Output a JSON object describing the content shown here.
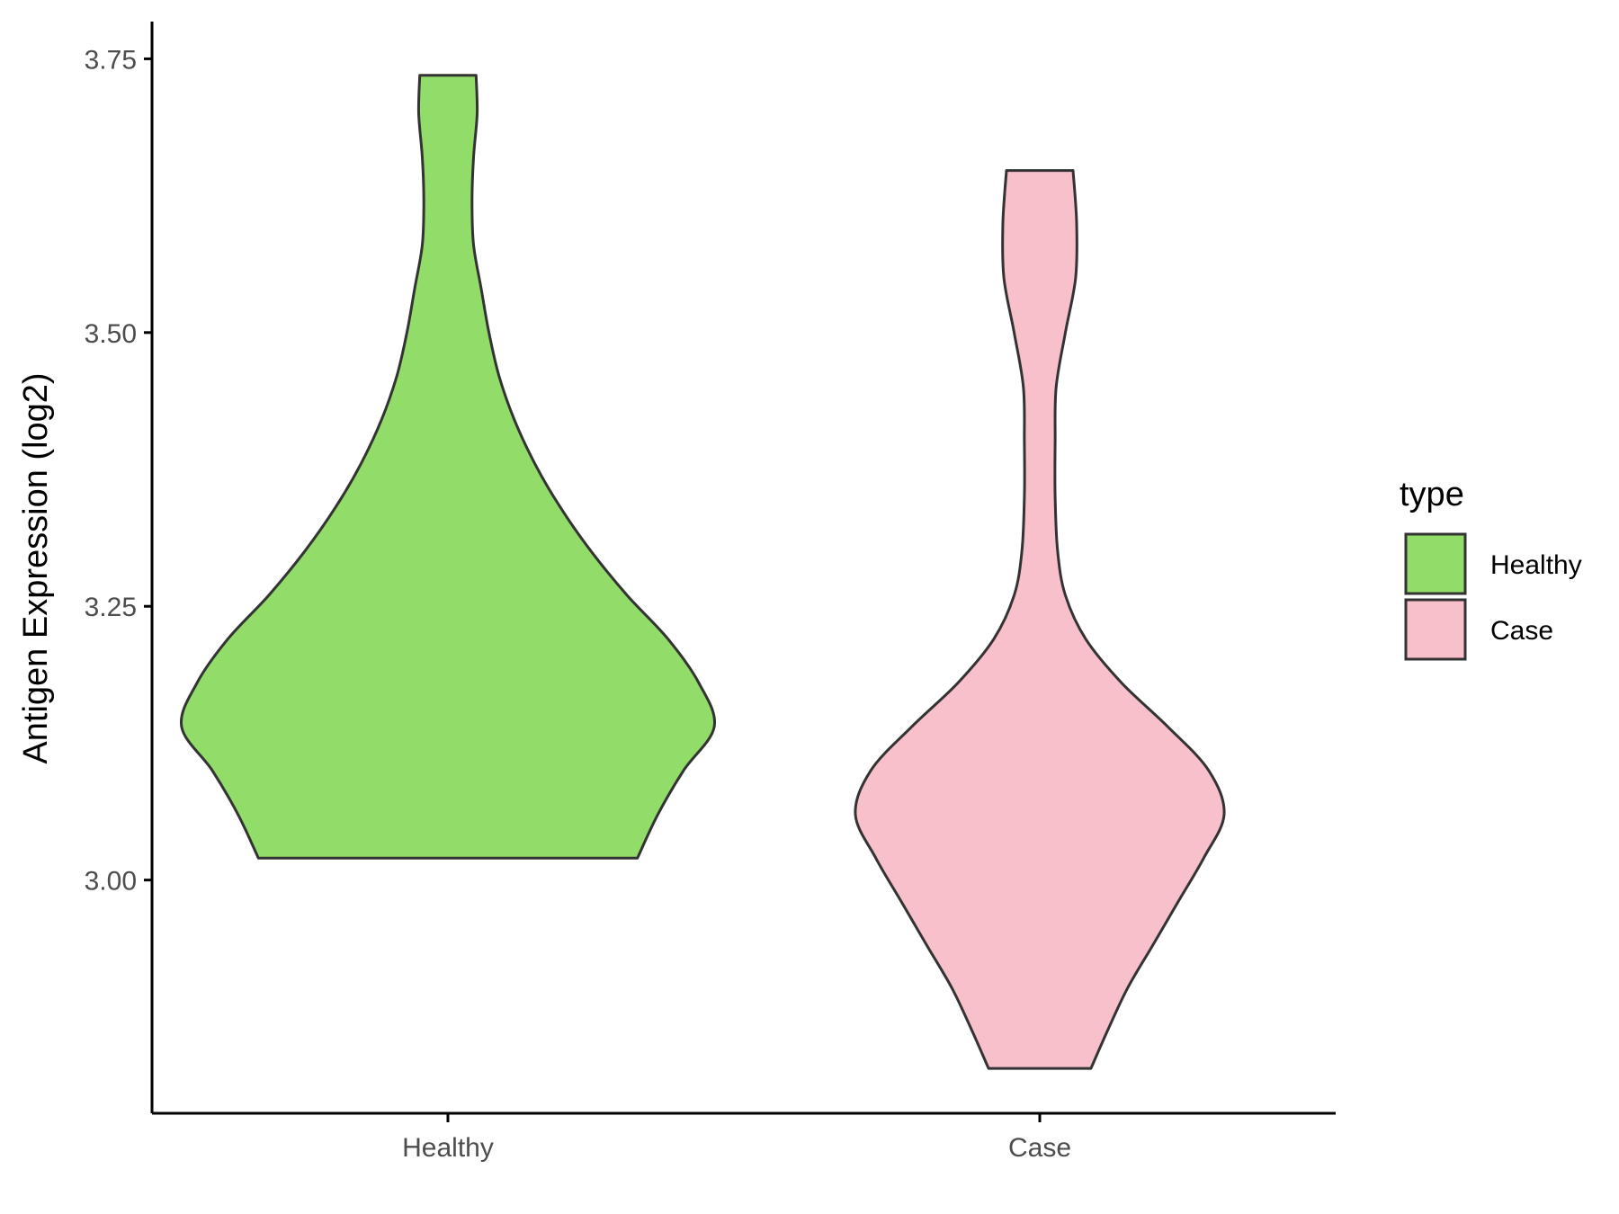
{
  "chart_data": {
    "type": "violin",
    "title": "",
    "xlabel": "",
    "ylabel": "Antigen Expression (log2)",
    "ylim": [
      2.787,
      3.784
    ],
    "y_ticks": [
      "3.00",
      "3.25",
      "3.50",
      "3.75"
    ],
    "y_tick_values": [
      3.0,
      3.25,
      3.5,
      3.75
    ],
    "categories": [
      "Healthy",
      "Case"
    ],
    "grid": false,
    "legend": {
      "title": "type",
      "position": "right",
      "entries": [
        {
          "label": "Healthy",
          "color": "#92dc6a"
        },
        {
          "label": "Case",
          "color": "#f8c0cb"
        }
      ]
    },
    "series": [
      {
        "name": "Healthy",
        "color": "#92dc6a",
        "min": 3.02,
        "max": 3.735,
        "profile": [
          [
            3.02,
            0.37
          ],
          [
            3.06,
            0.41
          ],
          [
            3.1,
            0.46
          ],
          [
            3.14,
            0.52
          ],
          [
            3.18,
            0.49
          ],
          [
            3.22,
            0.43
          ],
          [
            3.26,
            0.35
          ],
          [
            3.3,
            0.28
          ],
          [
            3.34,
            0.22
          ],
          [
            3.38,
            0.17
          ],
          [
            3.42,
            0.13
          ],
          [
            3.46,
            0.1
          ],
          [
            3.5,
            0.08
          ],
          [
            3.54,
            0.065
          ],
          [
            3.58,
            0.05
          ],
          [
            3.62,
            0.047
          ],
          [
            3.66,
            0.05
          ],
          [
            3.7,
            0.057
          ],
          [
            3.735,
            0.055
          ]
        ]
      },
      {
        "name": "Case",
        "color": "#f8c0cb",
        "min": 2.828,
        "max": 3.648,
        "profile": [
          [
            2.828,
            0.1
          ],
          [
            2.86,
            0.13
          ],
          [
            2.9,
            0.17
          ],
          [
            2.94,
            0.22
          ],
          [
            2.98,
            0.27
          ],
          [
            3.02,
            0.32
          ],
          [
            3.06,
            0.36
          ],
          [
            3.1,
            0.33
          ],
          [
            3.14,
            0.25
          ],
          [
            3.18,
            0.16
          ],
          [
            3.22,
            0.09
          ],
          [
            3.26,
            0.05
          ],
          [
            3.3,
            0.035
          ],
          [
            3.35,
            0.03
          ],
          [
            3.4,
            0.03
          ],
          [
            3.45,
            0.032
          ],
          [
            3.5,
            0.05
          ],
          [
            3.55,
            0.07
          ],
          [
            3.6,
            0.072
          ],
          [
            3.648,
            0.065
          ]
        ]
      }
    ]
  }
}
